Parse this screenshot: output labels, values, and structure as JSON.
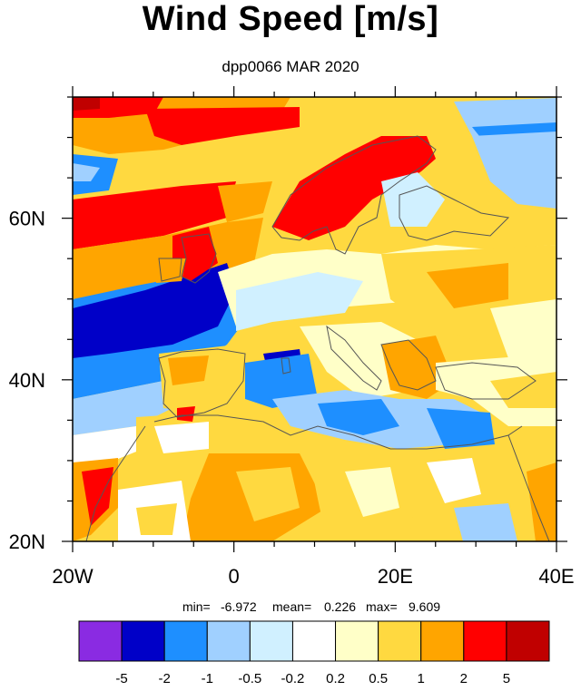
{
  "title": "Wind Speed [m/s]",
  "subtitle": "dpp0066 MAR 2020",
  "map": {
    "type": "heatmap",
    "region": "Europe / North Africa",
    "lon_range": [
      -20,
      40
    ],
    "lat_range": [
      20,
      75
    ],
    "x_tick_labels": [
      "20W",
      "0",
      "20E",
      "40E"
    ],
    "y_tick_labels": [
      "20N",
      "40N",
      "60N"
    ]
  },
  "stats": {
    "min_label": "min=",
    "min": "-6.972",
    "mean_label": "mean=",
    "mean": "0.226",
    "max_label": "max=",
    "max": "9.609"
  },
  "colorbar": {
    "colors": [
      "#8a2be2",
      "#0000c8",
      "#1e8fff",
      "#a0d0ff",
      "#d0f0ff",
      "#ffffff",
      "#ffffc8",
      "#ffd940",
      "#ffa500",
      "#ff0000",
      "#c00000"
    ],
    "boundaries": [
      "-5",
      "-2",
      "-1",
      "-0.5",
      "-0.2",
      "0.2",
      "0.5",
      "1",
      "2",
      "5"
    ]
  }
}
